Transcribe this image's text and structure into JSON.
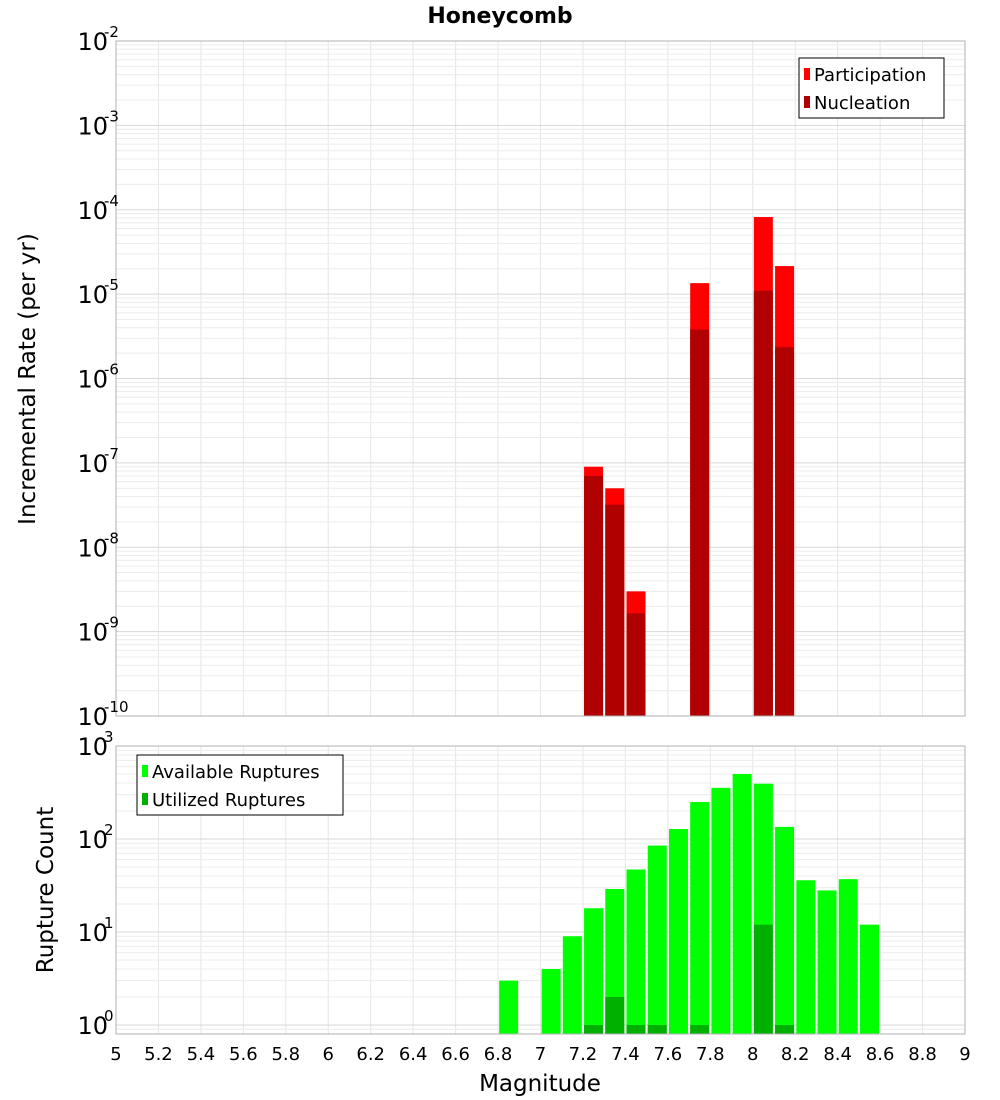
{
  "chart_data": [
    {
      "type": "bar",
      "title": "Honeycomb",
      "xlabel": "",
      "ylabel": "Incremental Rate (per yr)",
      "yscale": "log",
      "ylim": [
        1e-10,
        0.01
      ],
      "xlim": [
        5,
        9
      ],
      "legend_position": "top-right",
      "yticks": [
        {
          "base": "10",
          "exp": "-10"
        },
        {
          "base": "10",
          "exp": "-9"
        },
        {
          "base": "10",
          "exp": "-8"
        },
        {
          "base": "10",
          "exp": "-7"
        },
        {
          "base": "10",
          "exp": "-6"
        },
        {
          "base": "10",
          "exp": "-5"
        },
        {
          "base": "10",
          "exp": "-4"
        },
        {
          "base": "10",
          "exp": "-3"
        },
        {
          "base": "10",
          "exp": "-2"
        }
      ],
      "series": [
        {
          "name": "Participation",
          "color": "#ff0000",
          "x": [
            7.25,
            7.35,
            7.45,
            7.75,
            8.05,
            8.15
          ],
          "values": [
            9e-08,
            5e-08,
            3e-09,
            1.35e-05,
            8.2e-05,
            2.15e-05
          ]
        },
        {
          "name": "Nucleation",
          "color": "#b00000",
          "x": [
            7.25,
            7.35,
            7.45,
            7.75,
            8.05,
            8.15
          ],
          "values": [
            7e-08,
            3.2e-08,
            1.65e-09,
            3.8e-06,
            1.1e-05,
            2.35e-06
          ]
        }
      ]
    },
    {
      "type": "bar",
      "title": "",
      "xlabel": "Magnitude",
      "ylabel": "Rupture Count",
      "yscale": "log",
      "ylim": [
        0.8,
        1000
      ],
      "xlim": [
        5,
        9
      ],
      "legend_position": "top-left",
      "xticks": [
        "5",
        "5.2",
        "5.4",
        "5.6",
        "5.8",
        "6",
        "6.2",
        "6.4",
        "6.6",
        "6.8",
        "7",
        "7.2",
        "7.4",
        "7.6",
        "7.8",
        "8",
        "8.2",
        "8.4",
        "8.6",
        "8.8",
        "9"
      ],
      "yticks": [
        {
          "base": "10",
          "exp": "0"
        },
        {
          "base": "10",
          "exp": "1"
        },
        {
          "base": "10",
          "exp": "2"
        },
        {
          "base": "10",
          "exp": "3"
        }
      ],
      "series": [
        {
          "name": "Available Ruptures",
          "color": "#00ff00",
          "x": [
            6.85,
            7.05,
            7.15,
            7.25,
            7.35,
            7.45,
            7.55,
            7.65,
            7.75,
            7.85,
            7.95,
            8.05,
            8.15,
            8.25,
            8.35,
            8.45,
            8.55
          ],
          "values": [
            3,
            4,
            9,
            18,
            29,
            47,
            85,
            128,
            250,
            355,
            500,
            393,
            135,
            36,
            28,
            37,
            12
          ]
        },
        {
          "name": "Utilized Ruptures",
          "color": "#00b000",
          "x": [
            7.25,
            7.35,
            7.45,
            7.55,
            7.75,
            8.05,
            8.15
          ],
          "values": [
            1,
            2,
            1,
            1,
            1,
            12,
            1
          ]
        }
      ]
    }
  ]
}
